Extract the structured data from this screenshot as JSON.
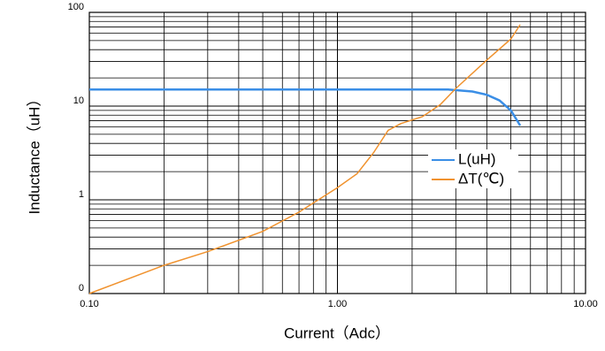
{
  "chart_data": {
    "type": "line",
    "x_label": "Current（Adc）",
    "y_label": "Inductance（uH）",
    "xscale": "log",
    "yscale": "log",
    "grid": "major and minor",
    "xlim": [
      0.1,
      10
    ],
    "ylim": [
      0.1,
      100
    ],
    "xticks": [
      {
        "value": 0.1,
        "label": "0.10"
      },
      {
        "value": 1,
        "label": "1.00"
      },
      {
        "value": 10,
        "label": "10.00"
      }
    ],
    "yticks": [
      {
        "value": 0.1,
        "label": "0"
      },
      1,
      10,
      100
    ],
    "legend": "right",
    "series": [
      {
        "name": "L(uH)",
        "color": "#3a8ee6",
        "x": [
          0.1,
          0.5,
          1.0,
          2.0,
          2.8,
          3.5,
          4.0,
          4.5,
          5.0,
          5.45
        ],
        "values": [
          15,
          15,
          15,
          15,
          15,
          14.3,
          13.2,
          11.5,
          9,
          6.2
        ]
      },
      {
        "name": "ΔT(℃)",
        "color": "#f0922e",
        "x": [
          0.1,
          0.2,
          0.3,
          0.5,
          0.7,
          1.0,
          1.2,
          1.4,
          1.6,
          1.8,
          2.2,
          2.6,
          3.0,
          4.0,
          5.0,
          5.45
        ],
        "values": [
          0.1,
          0.2,
          0.28,
          0.46,
          0.74,
          1.35,
          1.9,
          3.2,
          5.5,
          6.5,
          7.7,
          10.4,
          15.4,
          31,
          52,
          74
        ]
      }
    ]
  }
}
